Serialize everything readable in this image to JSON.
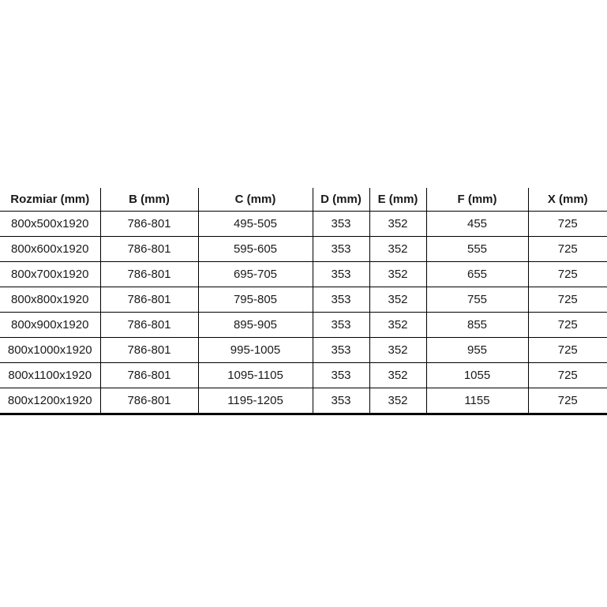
{
  "chart_data": {
    "type": "table",
    "title": "",
    "columns": [
      "Rozmiar (mm)",
      "B (mm)",
      "C (mm)",
      "D (mm)",
      "E (mm)",
      "F (mm)",
      "X (mm)"
    ],
    "rows": [
      [
        "800x500x1920",
        "786-801",
        "495-505",
        "353",
        "352",
        "455",
        "725"
      ],
      [
        "800x600x1920",
        "786-801",
        "595-605",
        "353",
        "352",
        "555",
        "725"
      ],
      [
        "800x700x1920",
        "786-801",
        "695-705",
        "353",
        "352",
        "655",
        "725"
      ],
      [
        "800x800x1920",
        "786-801",
        "795-805",
        "353",
        "352",
        "755",
        "725"
      ],
      [
        "800x900x1920",
        "786-801",
        "895-905",
        "353",
        "352",
        "855",
        "725"
      ],
      [
        "800x1000x1920",
        "786-801",
        "995-1005",
        "353",
        "352",
        "955",
        "725"
      ],
      [
        "800x1100x1920",
        "786-801",
        "1095-1105",
        "353",
        "352",
        "1055",
        "725"
      ],
      [
        "800x1200x1920",
        "786-801",
        "1195-1205",
        "353",
        "352",
        "1155",
        "725"
      ]
    ]
  },
  "colors": {
    "background": "#ffffff",
    "grid_line": "#000000",
    "text": "#1a1a1a"
  },
  "layout_hints": {
    "grid": "internal lines only, no outer top/left/right border",
    "bottom_border": "thick",
    "header_style": "bold, centered",
    "cell_alignment": "center"
  }
}
